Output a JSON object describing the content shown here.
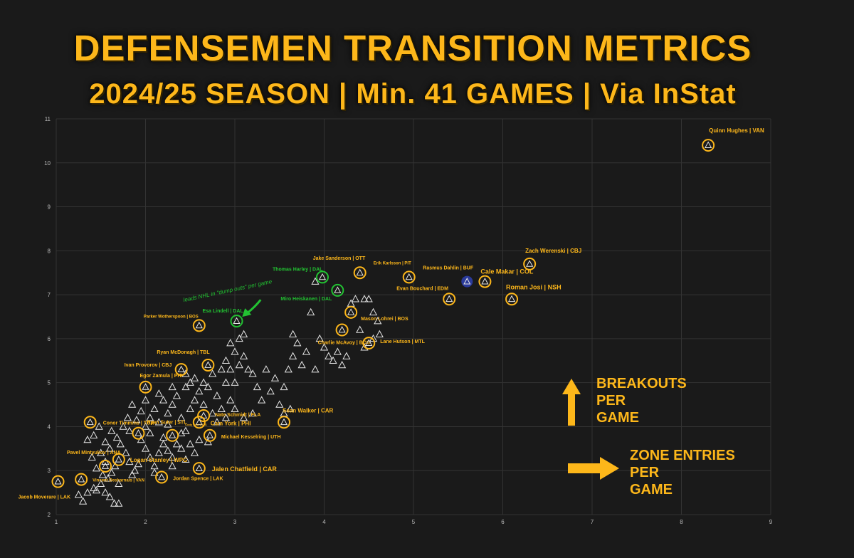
{
  "header": {
    "title": "DEFENSEMEN TRANSITION METRICS",
    "subtitle": "2024/25 SEASON | Min. 41 GAMES | Via InStat"
  },
  "legend": {
    "y_axis_label": [
      "BREAKOUTS",
      "PER",
      "GAME"
    ],
    "x_axis_label": [
      "ZONE ENTRIES",
      "PER",
      "GAME"
    ]
  },
  "colors": {
    "background": "#1a1a1a",
    "accent": "#fdb71a",
    "highlight_green": "#22c232",
    "highlight_blue": "#2a3a9a",
    "marker": "#e6e6e6",
    "grid": "#333333",
    "tick": "#bbbbbb"
  },
  "chart_data": {
    "type": "scatter",
    "title": "DEFENSEMEN TRANSITION METRICS",
    "xlabel": "ZONE ENTRIES PER GAME",
    "ylabel": "BREAKOUTS PER GAME",
    "xlim": [
      1,
      9
    ],
    "ylim": [
      2,
      11
    ],
    "xticks": [
      1,
      2,
      3,
      4,
      5,
      6,
      7,
      8,
      9
    ],
    "yticks": [
      2,
      3,
      4,
      5,
      6,
      7,
      8,
      9,
      10,
      11
    ],
    "grid": true,
    "annotation": {
      "text": "leads NHL in \"dump outs\" per game",
      "x": 3.05,
      "y": 6.4
    },
    "highlighted": [
      {
        "name": "Quinn Hughes | VAN",
        "x": 8.3,
        "y": 10.4,
        "color": "orange"
      },
      {
        "name": "Zach Werenski | CBJ",
        "x": 6.3,
        "y": 7.7,
        "color": "orange"
      },
      {
        "name": "Cale Makar | COL",
        "x": 5.8,
        "y": 7.3,
        "color": "orange"
      },
      {
        "name": "Rasmus Dahlin | BUF",
        "x": 5.6,
        "y": 7.3,
        "color": "blue"
      },
      {
        "name": "Roman Josi | NSH",
        "x": 6.1,
        "y": 6.9,
        "color": "orange"
      },
      {
        "name": "Erik Karlsson | PIT",
        "x": 4.95,
        "y": 7.4,
        "color": "orange"
      },
      {
        "name": "Evan Bouchard | EDM",
        "x": 5.4,
        "y": 6.9,
        "color": "orange"
      },
      {
        "name": "Jake Sanderson | OTT",
        "x": 4.4,
        "y": 7.5,
        "color": "orange"
      },
      {
        "name": "Thomas Harley | DAL",
        "x": 3.98,
        "y": 7.4,
        "color": "green"
      },
      {
        "name": "Miro Heiskanen | DAL",
        "x": 4.15,
        "y": 7.1,
        "color": "green"
      },
      {
        "name": "Esa Lindell | DAL",
        "x": 3.02,
        "y": 6.4,
        "color": "green"
      },
      {
        "name": "Mason Lohrei | BOS",
        "x": 4.3,
        "y": 6.6,
        "color": "orange"
      },
      {
        "name": "Charlie McAvoy | BOS",
        "x": 4.2,
        "y": 6.2,
        "color": "orange"
      },
      {
        "name": "Lane Hutson | MTL",
        "x": 4.5,
        "y": 5.9,
        "color": "orange"
      },
      {
        "name": "Parker Wotherspoon | BOS",
        "x": 2.6,
        "y": 6.3,
        "color": "orange"
      },
      {
        "name": "Ryan McDonagh | TBL",
        "x": 2.7,
        "y": 5.4,
        "color": "orange"
      },
      {
        "name": "Ivan Provorov | CBJ",
        "x": 2.4,
        "y": 5.3,
        "color": "orange"
      },
      {
        "name": "Egor Zamula | PHI",
        "x": 2.0,
        "y": 4.9,
        "color": "orange"
      },
      {
        "name": "Sean Walker | CAR",
        "x": 3.55,
        "y": 4.1,
        "color": "orange"
      },
      {
        "name": "Nate Schmidt | FLA",
        "x": 2.65,
        "y": 4.25,
        "color": "orange"
      },
      {
        "name": "Cam York | PHI",
        "x": 2.6,
        "y": 4.1,
        "color": "orange"
      },
      {
        "name": "Cody Ceci | SJS",
        "x": 2.3,
        "y": 3.8,
        "color": "orange"
      },
      {
        "name": "Michael Kesselring | UTH",
        "x": 2.72,
        "y": 3.8,
        "color": "orange"
      },
      {
        "name": "Conor Timmins | TOR",
        "x": 1.38,
        "y": 4.1,
        "color": "orange"
      },
      {
        "name": "Ryan Suter | STL",
        "x": 1.92,
        "y": 3.85,
        "color": "orange"
      },
      {
        "name": "Pavel Mintyukov | ANA",
        "x": 1.55,
        "y": 3.1,
        "color": "orange"
      },
      {
        "name": "Logan Stanley | WPG",
        "x": 1.7,
        "y": 3.25,
        "color": "orange"
      },
      {
        "name": "Vincent Desharnais | VAN",
        "x": 1.28,
        "y": 2.8,
        "color": "orange"
      },
      {
        "name": "Jacob Moverare | LAK",
        "x": 1.02,
        "y": 2.75,
        "color": "orange"
      },
      {
        "name": "Jalen Chatfield | CAR",
        "x": 2.6,
        "y": 3.05,
        "color": "orange"
      },
      {
        "name": "Jordan Spence | LAK",
        "x": 2.18,
        "y": 2.85,
        "color": "orange"
      }
    ],
    "others": [
      [
        1.3,
        2.3
      ],
      [
        1.35,
        2.5
      ],
      [
        1.42,
        2.6
      ],
      [
        1.5,
        2.7
      ],
      [
        1.55,
        2.5
      ],
      [
        1.6,
        2.4
      ],
      [
        1.65,
        2.25
      ],
      [
        1.7,
        2.25
      ],
      [
        1.52,
        2.9
      ],
      [
        1.62,
        2.95
      ],
      [
        1.45,
        3.05
      ],
      [
        1.4,
        3.3
      ],
      [
        1.5,
        3.4
      ],
      [
        1.55,
        3.2
      ],
      [
        1.6,
        3.5
      ],
      [
        1.66,
        3.1
      ],
      [
        1.72,
        3.6
      ],
      [
        1.78,
        3.4
      ],
      [
        1.82,
        3.2
      ],
      [
        1.88,
        3.0
      ],
      [
        1.35,
        3.7
      ],
      [
        1.42,
        3.8
      ],
      [
        1.48,
        4.0
      ],
      [
        1.55,
        3.65
      ],
      [
        1.62,
        3.9
      ],
      [
        1.68,
        3.75
      ],
      [
        1.75,
        4.0
      ],
      [
        1.82,
        3.9
      ],
      [
        1.9,
        4.15
      ],
      [
        1.95,
        3.7
      ],
      [
        2.0,
        3.5
      ],
      [
        2.05,
        3.3
      ],
      [
        2.1,
        3.1
      ],
      [
        2.15,
        3.4
      ],
      [
        2.2,
        3.6
      ],
      [
        2.25,
        3.45
      ],
      [
        2.3,
        3.3
      ],
      [
        2.35,
        3.6
      ],
      [
        2.4,
        3.5
      ],
      [
        2.45,
        3.9
      ],
      [
        2.0,
        4.0
      ],
      [
        2.05,
        4.2
      ],
      [
        2.1,
        4.4
      ],
      [
        2.15,
        4.1
      ],
      [
        2.2,
        4.6
      ],
      [
        2.25,
        4.3
      ],
      [
        2.3,
        4.5
      ],
      [
        2.35,
        4.7
      ],
      [
        2.4,
        4.2
      ],
      [
        2.45,
        4.9
      ],
      [
        2.5,
        4.4
      ],
      [
        2.55,
        4.6
      ],
      [
        2.6,
        4.8
      ],
      [
        2.65,
        4.5
      ],
      [
        2.7,
        4.9
      ],
      [
        2.75,
        4.3
      ],
      [
        2.8,
        4.7
      ],
      [
        2.85,
        4.4
      ],
      [
        2.9,
        5.0
      ],
      [
        2.95,
        4.6
      ],
      [
        2.55,
        5.1
      ],
      [
        2.65,
        5.0
      ],
      [
        2.75,
        5.2
      ],
      [
        2.85,
        5.3
      ],
      [
        2.95,
        5.3
      ],
      [
        3.0,
        5.0
      ],
      [
        3.05,
        5.4
      ],
      [
        3.1,
        5.6
      ],
      [
        3.15,
        5.3
      ],
      [
        3.2,
        5.2
      ],
      [
        3.0,
        5.7
      ],
      [
        3.05,
        6.0
      ],
      [
        2.95,
        5.9
      ],
      [
        3.1,
        6.1
      ],
      [
        2.9,
        5.5
      ],
      [
        3.25,
        4.9
      ],
      [
        3.3,
        4.6
      ],
      [
        3.35,
        5.3
      ],
      [
        3.4,
        4.8
      ],
      [
        3.45,
        5.1
      ],
      [
        3.5,
        4.5
      ],
      [
        3.55,
        4.9
      ],
      [
        3.6,
        5.3
      ],
      [
        3.65,
        5.6
      ],
      [
        3.7,
        5.9
      ],
      [
        3.65,
        6.1
      ],
      [
        3.75,
        5.4
      ],
      [
        3.8,
        5.7
      ],
      [
        3.62,
        4.4
      ],
      [
        3.55,
        4.3
      ],
      [
        3.85,
        6.6
      ],
      [
        3.9,
        7.3
      ],
      [
        3.95,
        6.0
      ],
      [
        4.0,
        5.8
      ],
      [
        4.05,
        5.6
      ],
      [
        4.1,
        5.5
      ],
      [
        4.15,
        5.7
      ],
      [
        4.2,
        5.4
      ],
      [
        4.25,
        5.6
      ],
      [
        3.9,
        5.3
      ],
      [
        4.4,
        6.2
      ],
      [
        4.45,
        6.9
      ],
      [
        4.5,
        6.9
      ],
      [
        4.55,
        6.6
      ],
      [
        4.6,
        6.4
      ],
      [
        4.55,
        6.0
      ],
      [
        4.62,
        6.1
      ],
      [
        4.45,
        5.8
      ],
      [
        4.3,
        6.8
      ],
      [
        4.35,
        6.9
      ],
      [
        2.2,
        3.75
      ],
      [
        2.4,
        3.85
      ],
      [
        2.5,
        3.6
      ],
      [
        2.6,
        3.7
      ],
      [
        2.7,
        3.65
      ],
      [
        2.8,
        4.1
      ],
      [
        2.9,
        4.2
      ],
      [
        3.0,
        4.4
      ],
      [
        3.1,
        4.2
      ],
      [
        3.2,
        4.3
      ],
      [
        1.95,
        4.35
      ],
      [
        2.0,
        4.6
      ],
      [
        2.15,
        4.75
      ],
      [
        2.3,
        4.9
      ],
      [
        2.45,
        5.2
      ],
      [
        2.5,
        5.0
      ],
      [
        1.85,
        4.5
      ],
      [
        1.8,
        4.2
      ],
      [
        2.05,
        3.85
      ],
      [
        2.25,
        4.05
      ],
      [
        1.45,
        2.55
      ],
      [
        1.7,
        2.7
      ],
      [
        1.85,
        2.9
      ],
      [
        1.92,
        3.15
      ],
      [
        2.1,
        2.95
      ],
      [
        1.25,
        2.45
      ],
      [
        1.58,
        2.82
      ],
      [
        2.3,
        3.1
      ],
      [
        2.45,
        3.25
      ],
      [
        2.55,
        3.4
      ]
    ]
  }
}
